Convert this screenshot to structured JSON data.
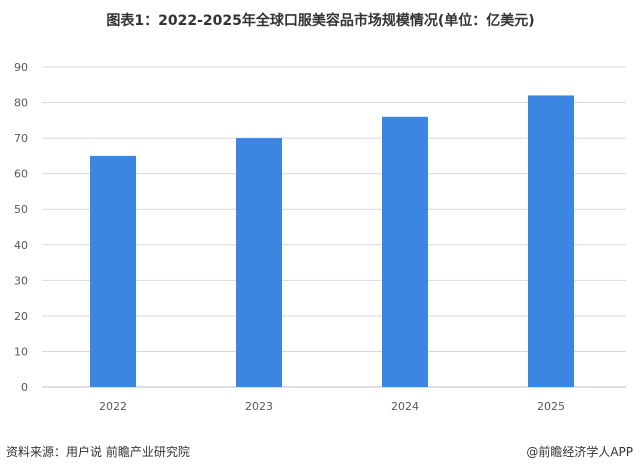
{
  "chart_data": {
    "type": "bar",
    "title": "图表1：2022-2025年全球口服美容品市场规模情况(单位：亿美元)",
    "categories": [
      "2022",
      "2023",
      "2024",
      "2025"
    ],
    "values": [
      65,
      70,
      76,
      82
    ],
    "xlabel": "",
    "ylabel": "",
    "ylim": [
      0,
      90
    ],
    "yticks": [
      0,
      10,
      20,
      30,
      40,
      50,
      60,
      70,
      80,
      90
    ],
    "grid": true,
    "bar_color": "#3a86e0"
  },
  "footer": {
    "source": "资料来源：用户说 前瞻产业研究院",
    "brand": "@前瞻经济学人APP"
  }
}
